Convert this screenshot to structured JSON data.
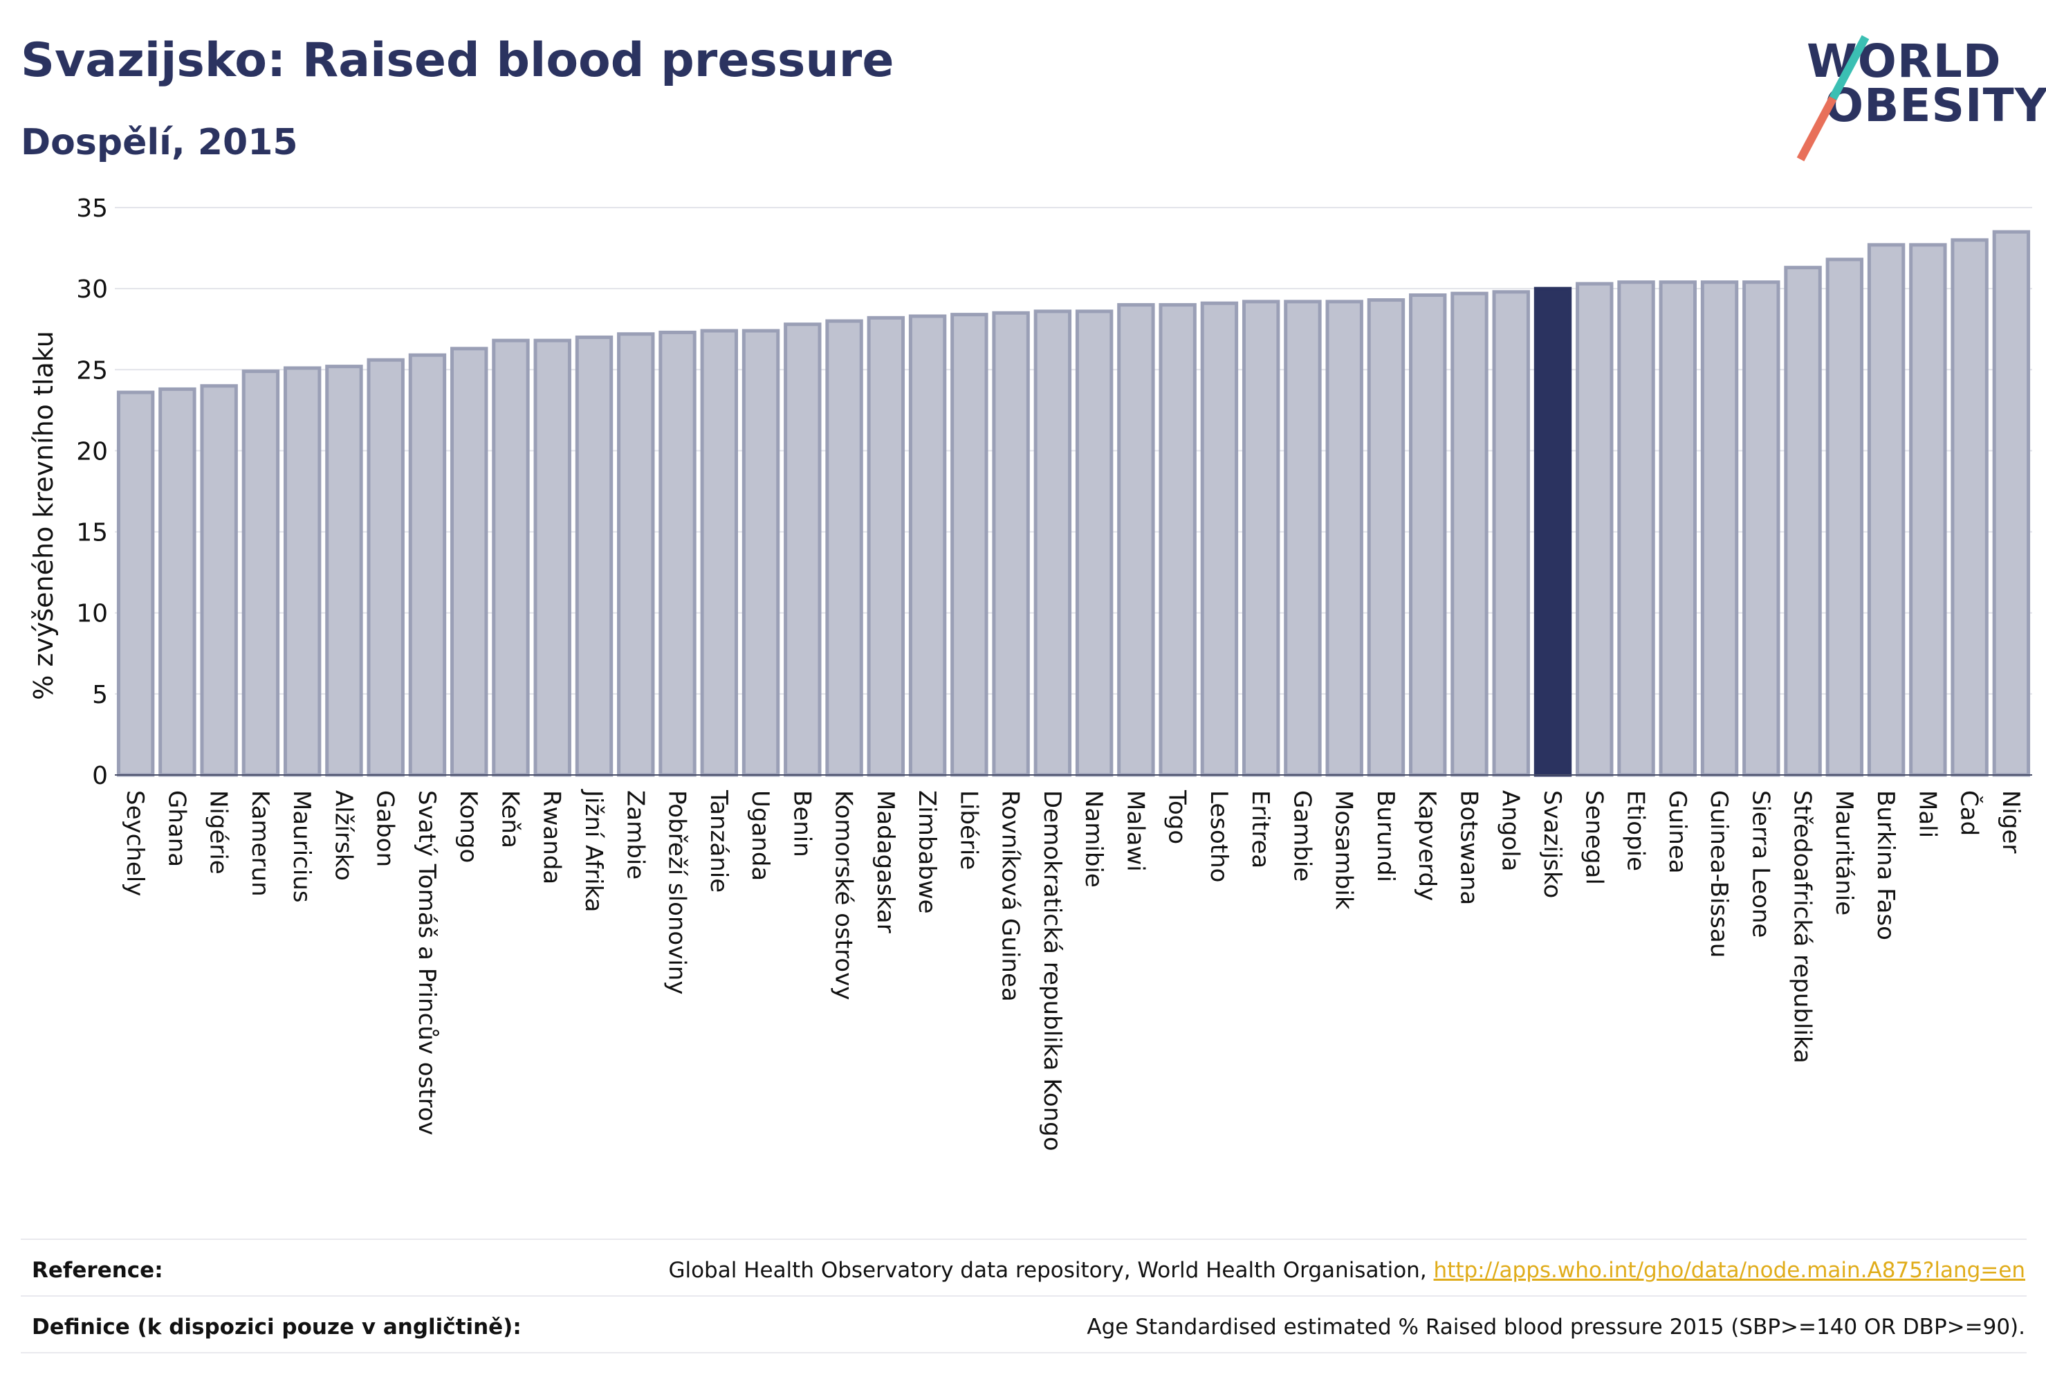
{
  "header": {
    "title": "Svazijsko: Raised blood pressure",
    "subtitle": "Dospělí, 2015"
  },
  "logo": {
    "line1": "WORLD",
    "line2": "OBESITY",
    "colors": {
      "teal": "#3bbfb3",
      "coral": "#e8705a"
    }
  },
  "colors": {
    "bar": "#bfc2d0",
    "bar_border": "#9a9fb6",
    "highlight": "#2b3360",
    "grid": "#e3e4ea",
    "text": "#2b3360"
  },
  "chart_data": {
    "type": "bar",
    "ylabel": "% zvýšeného krevního tlaku",
    "xlabel": "",
    "ylim": [
      0,
      35
    ],
    "yticks": [
      0,
      5,
      10,
      15,
      20,
      25,
      30,
      35
    ],
    "grid": true,
    "highlight": "Svazijsko",
    "categories": [
      "Seychely",
      "Ghana",
      "Nigérie",
      "Kamerun",
      "Mauricius",
      "Alžírsko",
      "Gabon",
      "Svatý Tomáš a Princův ostrov",
      "Kongo",
      "Keňa",
      "Rwanda",
      "Jižní Afrika",
      "Zambie",
      "Pobřeží slonoviny",
      "Tanzánie",
      "Uganda",
      "Benin",
      "Komorské ostrovy",
      "Madagaskar",
      "Zimbabwe",
      "Libérie",
      "Rovníková Guinea",
      "Demokratická republika Kongo",
      "Namibie",
      "Malawi",
      "Togo",
      "Lesotho",
      "Eritrea",
      "Gambie",
      "Mosambik",
      "Burundi",
      "Kapverdy",
      "Botswana",
      "Angola",
      "Svazijsko",
      "Senegal",
      "Etiopie",
      "Guinea",
      "Guinea-Bissau",
      "Sierra Leone",
      "Středoafrická republika",
      "Mauritánie",
      "Burkina Faso",
      "Mali",
      "Čad",
      "Niger"
    ],
    "values": [
      23.6,
      23.8,
      24.0,
      24.9,
      25.1,
      25.2,
      25.6,
      25.9,
      26.3,
      26.8,
      26.8,
      27.0,
      27.2,
      27.3,
      27.4,
      27.4,
      27.8,
      28.0,
      28.2,
      28.3,
      28.4,
      28.5,
      28.6,
      28.6,
      29.0,
      29.0,
      29.1,
      29.2,
      29.2,
      29.2,
      29.3,
      29.6,
      29.7,
      29.8,
      30.0,
      30.3,
      30.4,
      30.4,
      30.4,
      30.4,
      31.3,
      31.8,
      32.7,
      32.7,
      33.0,
      33.5
    ]
  },
  "footer": {
    "reference_label": "Reference:",
    "reference_text": "Global Health Observatory data repository, World Health Organisation, ",
    "reference_link": "http://apps.who.int/gho/data/node.main.A875?lang=en",
    "definition_label": "Definice (k dispozici pouze v angličtině):",
    "definition_text": "Age Standardised estimated % Raised blood pressure 2015 (SBP>=140 OR DBP>=90)."
  }
}
